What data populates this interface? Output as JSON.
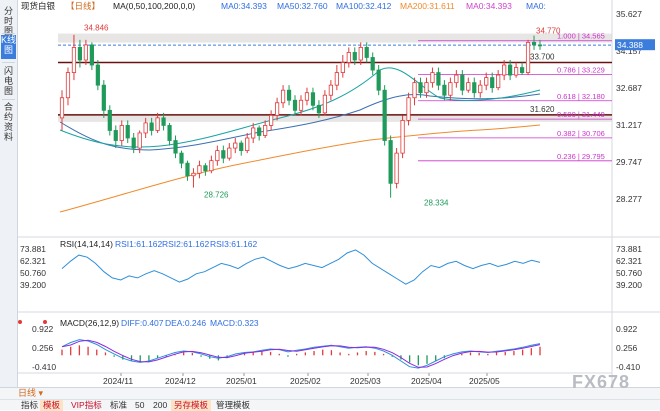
{
  "sidebar": {
    "tabs": [
      {
        "label": "分时图",
        "active": false
      },
      {
        "label": "K线图",
        "active": true
      },
      {
        "label": "闪电图",
        "active": false
      },
      {
        "label": "合约资料",
        "active": false
      }
    ]
  },
  "header": {
    "symbol": "现货白银",
    "period": "【日线】",
    "ma_label": "MA(0,50,100,200,0,0)",
    "ma_values": [
      {
        "text": "MA0:34.393",
        "color": "#2f6fe0"
      },
      {
        "text": "MA50:32.760",
        "color": "#2f6fe0"
      },
      {
        "text": "MA100:32.412",
        "color": "#2f6fe0"
      },
      {
        "text": "MA200:31.611",
        "color": "#f08a2c"
      },
      {
        "text": "MA0:34.393",
        "color": "#cc44cc"
      },
      {
        "text": "MA0:",
        "color": "#2f6fe0"
      }
    ]
  },
  "price_panel": {
    "y_ticks": [
      "35.627",
      "34.157",
      "32.687",
      "31.217",
      "29.747",
      "28.277"
    ],
    "current_price": "34.388",
    "labels": {
      "high_left": "34.846",
      "low_left": "28.726",
      "high_right": "34.770",
      "low_right": "28.334",
      "level_33_700": "33.700",
      "level_31_620": "31.620"
    },
    "fib_levels": [
      {
        "ratio": "1.000",
        "value": "34.565"
      },
      {
        "ratio": "0.786",
        "value": "33.229"
      },
      {
        "ratio": "0.618",
        "value": "32.180"
      },
      {
        "ratio": "0.500",
        "value": "31.449"
      },
      {
        "ratio": "0.382",
        "value": "30.706"
      },
      {
        "ratio": "0.236",
        "value": "29.795"
      }
    ]
  },
  "rsi_panel": {
    "label": "RSI(14,14,14)",
    "values": [
      {
        "text": "RSI1:61.162",
        "color": "#2f6fe0"
      },
      {
        "text": "RSI2:61.162",
        "color": "#2f6fe0"
      },
      {
        "text": "RSI3:61.162",
        "color": "#2f6fe0"
      }
    ],
    "y_ticks": [
      "73.881",
      "62.321",
      "50.760",
      "39.200"
    ]
  },
  "macd_panel": {
    "label": "MACD(26,12,9)",
    "values": [
      {
        "text": "DIFF:0.407",
        "color": "#2f6fe0"
      },
      {
        "text": "DEA:0.246",
        "color": "#2f6fe0"
      },
      {
        "text": "MACD:0.323",
        "color": "#2f6fe0"
      }
    ],
    "y_ticks": [
      "0.922",
      "0.256",
      "-0.410"
    ]
  },
  "x_axis": {
    "labels": [
      "2024/11",
      "2024/12",
      "2025/01",
      "2025/02",
      "2025/03",
      "2025/04",
      "2025/05"
    ]
  },
  "bottom_bar": {
    "period_select": "日线",
    "tabs": [
      {
        "label": "指标",
        "active": false
      },
      {
        "label": "模板",
        "active": true
      },
      {
        "label": "VIP指标",
        "active": false
      },
      {
        "label": "标准",
        "active": false
      },
      {
        "label": "50",
        "active": false
      },
      {
        "label": "200",
        "active": false
      },
      {
        "label": "另存模板",
        "active": true
      },
      {
        "label": "管理模板",
        "active": false
      }
    ]
  },
  "watermark": "FX678",
  "colors": {
    "up": "#e03a3a",
    "down": "#1f9a5a",
    "ma50": "#1aa3a3",
    "ma100": "#3b6fb0",
    "ma200": "#f08a2c",
    "fib": "#cc33cc",
    "accent": "#2f6fe0"
  }
}
